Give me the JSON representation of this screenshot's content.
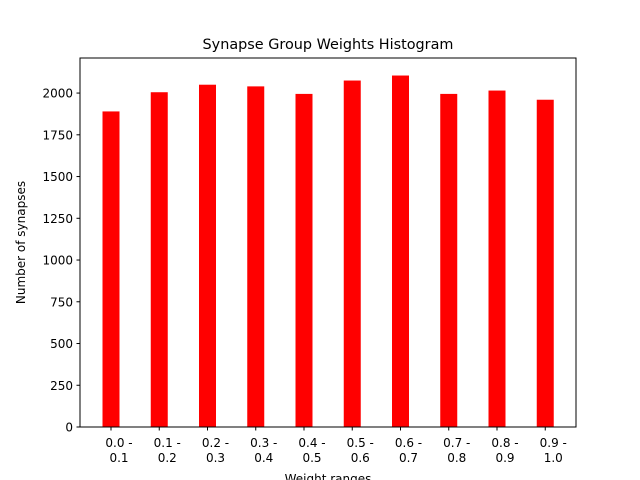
{
  "chart_data": {
    "type": "bar",
    "title": "Synapse Group Weights Histogram",
    "xlabel": "Weight ranges",
    "ylabel": "Number of synapses",
    "categories": [
      [
        "0.0 -",
        "0.1"
      ],
      [
        "0.1 -",
        "0.2"
      ],
      [
        "0.2 -",
        "0.3"
      ],
      [
        "0.3 -",
        "0.4"
      ],
      [
        "0.4 -",
        "0.5"
      ],
      [
        "0.5 -",
        "0.6"
      ],
      [
        "0.6 -",
        "0.7"
      ],
      [
        "0.7 -",
        "0.8"
      ],
      [
        "0.8 -",
        "0.9"
      ],
      [
        "0.9 -",
        "1.0"
      ]
    ],
    "values": [
      1890,
      2005,
      2050,
      2040,
      1995,
      2075,
      2105,
      1995,
      2015,
      1960
    ],
    "ylim": [
      0,
      2210
    ],
    "yticks": [
      0,
      250,
      500,
      750,
      1000,
      1250,
      1500,
      1750,
      2000
    ],
    "bar_color": "#ff0000",
    "grid": false,
    "legend": "none"
  }
}
